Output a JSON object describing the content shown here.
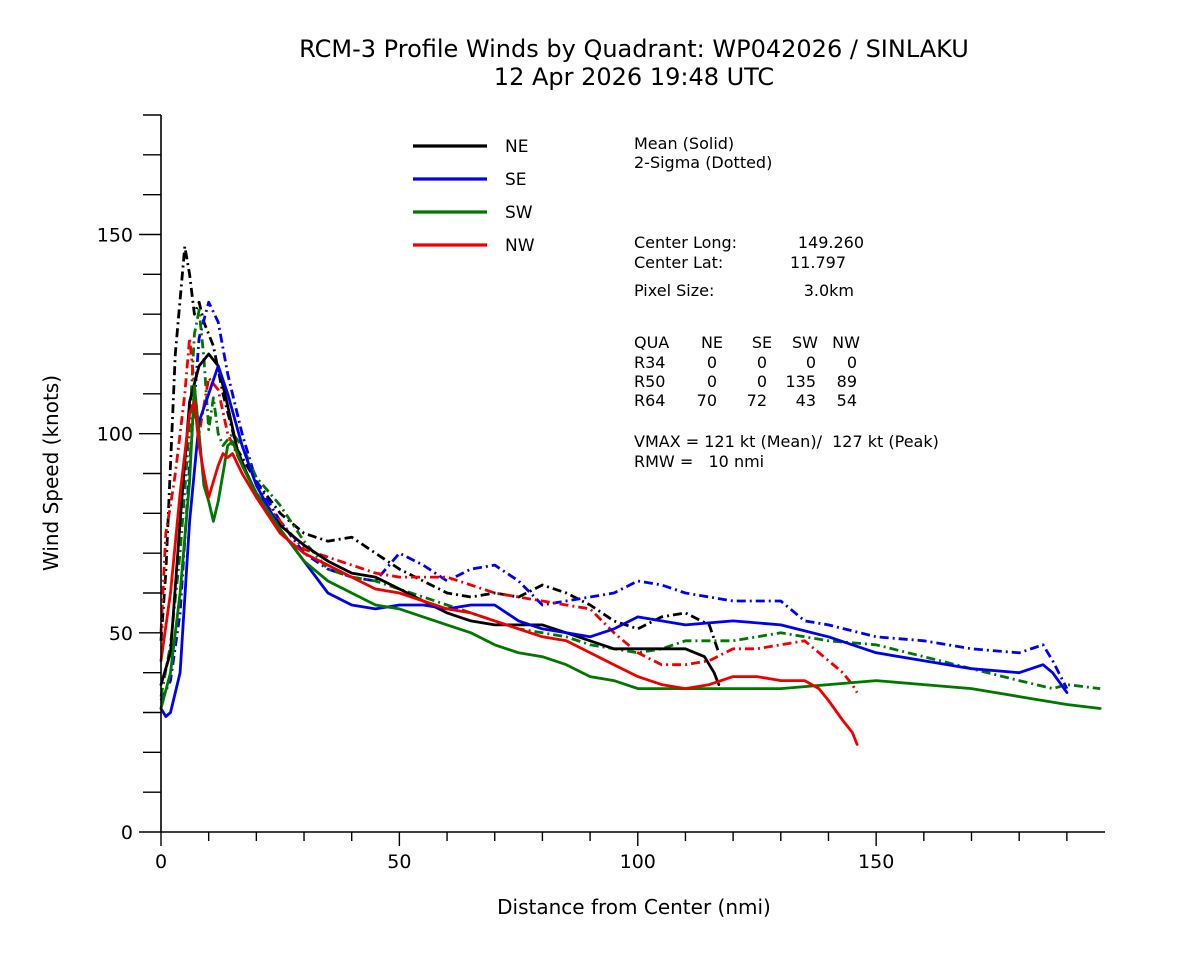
{
  "chart_data": {
    "type": "line",
    "title": "RCM-3 Profile Winds by Quadrant: WP042026 / SINLAKU",
    "subtitle": "12 Apr 2026 19:48 UTC",
    "xlabel": "Distance from Center (nmi)",
    "ylabel": "Wind Speed (knots)",
    "xlim": [
      0,
      198
    ],
    "ylim": [
      0,
      180
    ],
    "xticks": [
      0,
      50,
      100,
      150
    ],
    "yticks": [
      0,
      50,
      100,
      150
    ],
    "x_minor_step": 10,
    "y_minor_step": 10,
    "grid": false,
    "legend_position": "top-center",
    "legend": [
      {
        "name": "NE",
        "color": "#000000"
      },
      {
        "name": "SE",
        "color": "#0000ee"
      },
      {
        "name": "SW",
        "color": "#007700"
      },
      {
        "name": "NW",
        "color": "#ee0000"
      }
    ],
    "annotations": {
      "style_note_1": "Mean (Solid)",
      "style_note_2": "2-Sigma (Dotted)",
      "center_long_label": "Center Long:",
      "center_long_value": "149.260",
      "center_lat_label": "Center Lat:",
      "center_lat_value": "11.797",
      "pixel_size_label": "Pixel Size:",
      "pixel_size_value": "3.0km",
      "radii_table": {
        "header": [
          "QUA",
          "NE",
          "SE",
          "SW",
          "NW"
        ],
        "rows": [
          [
            "R34",
            "0",
            "0",
            "0",
            "0"
          ],
          [
            "R50",
            "0",
            "0",
            "135",
            "89"
          ],
          [
            "R64",
            "70",
            "72",
            "43",
            "54"
          ]
        ]
      },
      "vmax_text": "VMAX = 121 kt (Mean)/  127 kt (Peak)",
      "rmw_text": "RMW =   10 nmi"
    },
    "series": [
      {
        "name": "NE",
        "style": "mean",
        "x": [
          0,
          2,
          4,
          6,
          8,
          10,
          12,
          14,
          16,
          18,
          20,
          25,
          30,
          35,
          40,
          45,
          50,
          55,
          60,
          65,
          70,
          75,
          80,
          85,
          90,
          95,
          100,
          105,
          110,
          114,
          116,
          117
        ],
        "y": [
          37,
          45,
          78,
          108,
          117,
          120,
          117,
          107,
          96,
          90,
          85,
          77,
          72,
          68,
          65,
          64,
          61,
          58,
          55,
          53,
          52,
          52,
          52,
          50,
          48,
          46,
          46,
          46,
          46,
          44,
          40,
          37
        ]
      },
      {
        "name": "NE",
        "style": "sigma",
        "x": [
          0,
          1,
          3,
          5,
          6,
          7,
          8,
          9,
          11,
          13,
          16,
          20,
          25,
          30,
          35,
          40,
          45,
          50,
          55,
          60,
          65,
          70,
          75,
          80,
          85,
          90,
          95,
          100,
          105,
          110,
          115,
          117
        ],
        "y": [
          48,
          65,
          120,
          147,
          140,
          130,
          133,
          128,
          122,
          110,
          96,
          88,
          80,
          75,
          73,
          74,
          70,
          66,
          63,
          60,
          59,
          60,
          59,
          62,
          60,
          57,
          53,
          51,
          54,
          55,
          52,
          45
        ]
      },
      {
        "name": "SE",
        "style": "mean",
        "x": [
          0,
          1,
          2,
          4,
          6,
          8,
          10,
          12,
          14,
          17,
          20,
          25,
          30,
          35,
          40,
          45,
          50,
          55,
          60,
          65,
          70,
          75,
          80,
          85,
          90,
          95,
          100,
          105,
          110,
          120,
          130,
          140,
          150,
          160,
          170,
          180,
          185,
          187,
          190
        ],
        "y": [
          31,
          29,
          30,
          40,
          78,
          103,
          110,
          117,
          110,
          97,
          87,
          76,
          68,
          60,
          57,
          56,
          57,
          57,
          56,
          57,
          57,
          53,
          51,
          50,
          49,
          51,
          54,
          53,
          52,
          53,
          52,
          49,
          45,
          43,
          41,
          40,
          42,
          40,
          35
        ]
      },
      {
        "name": "SE",
        "style": "sigma",
        "x": [
          0,
          2,
          4,
          6,
          8,
          10,
          12,
          14,
          17,
          20,
          25,
          30,
          35,
          40,
          45,
          50,
          55,
          60,
          65,
          70,
          75,
          80,
          85,
          90,
          95,
          100,
          105,
          110,
          120,
          130,
          135,
          140,
          150,
          160,
          170,
          180,
          185,
          187,
          190
        ],
        "y": [
          33,
          38,
          55,
          92,
          124,
          133,
          128,
          115,
          100,
          88,
          78,
          70,
          66,
          64,
          63,
          70,
          67,
          63,
          66,
          67,
          63,
          57,
          58,
          59,
          60,
          63,
          62,
          60,
          58,
          58,
          53,
          52,
          49,
          48,
          46,
          45,
          47,
          43,
          36
        ]
      },
      {
        "name": "SW",
        "style": "mean",
        "x": [
          0,
          2,
          4,
          6,
          7,
          8,
          9,
          10,
          11,
          12,
          13,
          14,
          15,
          17,
          20,
          25,
          30,
          35,
          40,
          45,
          50,
          55,
          60,
          65,
          70,
          75,
          80,
          85,
          90,
          95,
          100,
          105,
          110,
          120,
          130,
          140,
          150,
          160,
          170,
          180,
          190,
          197
        ],
        "y": [
          31,
          40,
          60,
          88,
          112,
          100,
          87,
          83,
          78,
          83,
          90,
          97,
          98,
          92,
          85,
          76,
          68,
          63,
          60,
          57,
          56,
          54,
          52,
          50,
          47,
          45,
          44,
          42,
          39,
          38,
          36,
          36,
          36,
          36,
          36,
          37,
          38,
          37,
          36,
          34,
          32,
          31
        ]
      },
      {
        "name": "SW",
        "style": "sigma",
        "x": [
          0,
          2,
          4,
          6,
          7,
          8,
          9,
          10,
          11,
          12,
          13,
          15,
          17,
          20,
          25,
          30,
          35,
          40,
          45,
          50,
          55,
          60,
          65,
          70,
          75,
          80,
          85,
          90,
          95,
          100,
          105,
          110,
          120,
          130,
          140,
          150,
          160,
          170,
          180,
          187,
          190,
          197
        ],
        "y": [
          34,
          47,
          70,
          102,
          125,
          131,
          119,
          101,
          109,
          100,
          97,
          100,
          97,
          89,
          82,
          73,
          66,
          64,
          63,
          61,
          59,
          57,
          55,
          53,
          51,
          50,
          49,
          47,
          46,
          45,
          46,
          48,
          48,
          50,
          48,
          47,
          44,
          41,
          38,
          36,
          37,
          36
        ]
      },
      {
        "name": "NW",
        "style": "mean",
        "x": [
          0,
          2,
          4,
          6,
          7,
          8,
          9,
          10,
          11,
          12,
          13,
          14,
          15,
          17,
          20,
          25,
          30,
          35,
          40,
          45,
          50,
          55,
          60,
          65,
          70,
          75,
          80,
          85,
          90,
          95,
          100,
          105,
          110,
          115,
          120,
          125,
          130,
          135,
          138,
          140,
          143,
          145,
          146
        ],
        "y": [
          43,
          60,
          85,
          105,
          108,
          97,
          90,
          84,
          88,
          92,
          95,
          94,
          95,
          90,
          84,
          75,
          70,
          67,
          64,
          61,
          60,
          58,
          56,
          55,
          53,
          51,
          49,
          48,
          45,
          42,
          39,
          37,
          36,
          37,
          39,
          39,
          38,
          38,
          36,
          33,
          28,
          25,
          22
        ]
      },
      {
        "name": "NW",
        "style": "sigma",
        "x": [
          0,
          1,
          2,
          3,
          4,
          5,
          6,
          7,
          8,
          9,
          10,
          12,
          14,
          17,
          20,
          25,
          30,
          35,
          40,
          45,
          50,
          55,
          60,
          65,
          70,
          75,
          80,
          85,
          90,
          95,
          100,
          105,
          110,
          115,
          120,
          125,
          130,
          135,
          140,
          143,
          145,
          146
        ],
        "y": [
          50,
          75,
          82,
          90,
          100,
          110,
          124,
          112,
          100,
          107,
          114,
          111,
          100,
          92,
          85,
          78,
          71,
          69,
          67,
          65,
          64,
          64,
          64,
          62,
          60,
          59,
          58,
          57,
          56,
          50,
          45,
          42,
          42,
          43,
          46,
          46,
          47,
          48,
          43,
          40,
          37,
          35
        ]
      }
    ]
  }
}
